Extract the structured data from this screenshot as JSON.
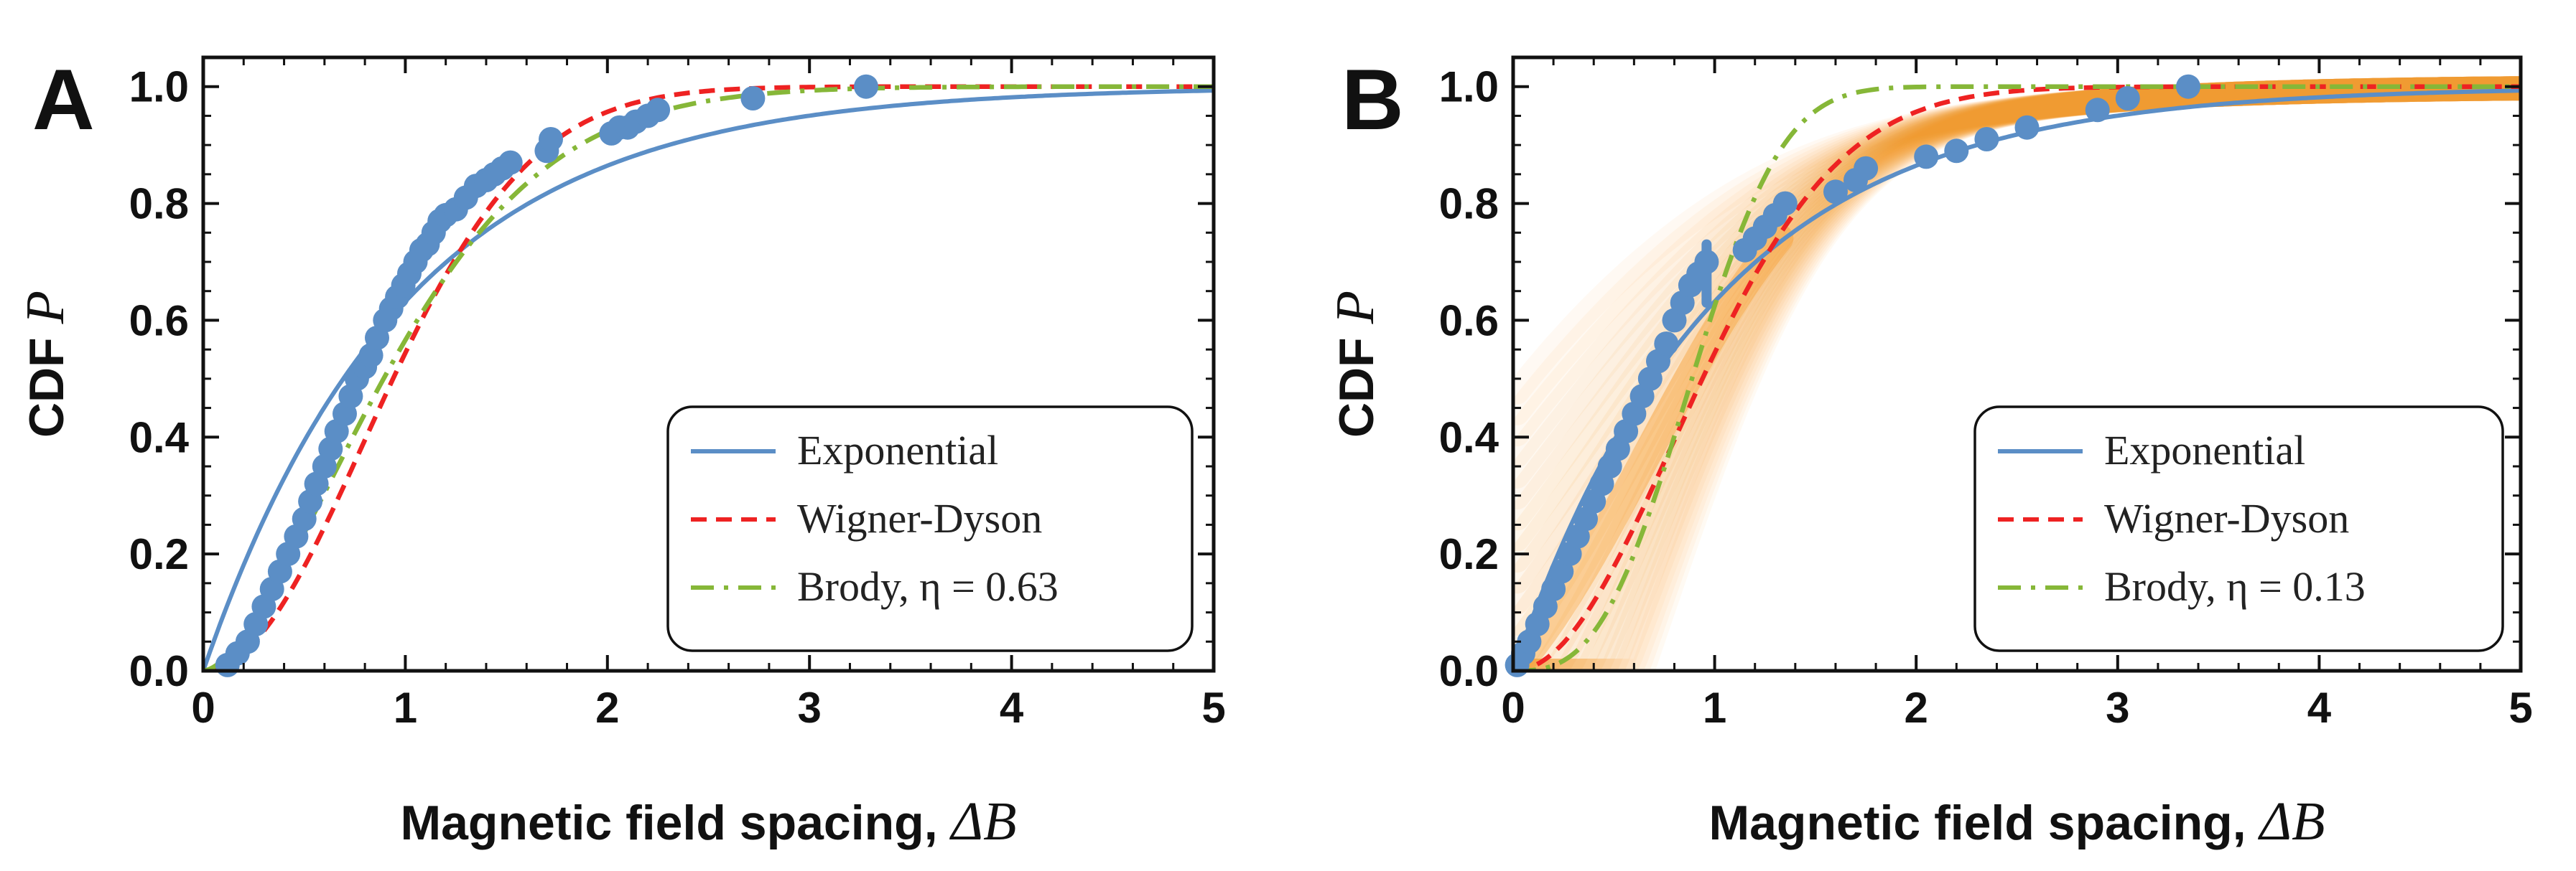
{
  "chart_data": [
    {
      "type": "line",
      "panel": "A",
      "xlabel": "Magnetic field spacing, ",
      "xlabel_var": "ΔB",
      "ylabel": "CDF ",
      "ylabel_var": "P",
      "xlim": [
        0,
        5
      ],
      "ylim": [
        0,
        1.05
      ],
      "xticks": [
        0,
        1,
        2,
        3,
        4,
        5
      ],
      "xtick_labels": [
        "0",
        "1",
        "2",
        "3",
        "4",
        "5"
      ],
      "yticks": [
        0,
        0.2,
        0.4,
        0.6,
        0.8,
        1.0
      ],
      "ytick_labels": [
        "0.0",
        "0.2",
        "0.4",
        "0.6",
        "0.8",
        "1.0"
      ],
      "series": [
        {
          "name": "Exponential",
          "kind": "exponential",
          "color": "#5b8ec6",
          "dash": "solid"
        },
        {
          "name": "Wigner-Dyson",
          "kind": "wigner",
          "color": "#ee2222",
          "dash": "dashed"
        },
        {
          "name": "Brody, η = 0.63",
          "kind": "brody",
          "eta": 0.63,
          "color": "#86b738",
          "dash": "dashdot"
        }
      ],
      "legend": {
        "position": "bottom-right"
      },
      "scatter": {
        "name": "data",
        "color": "#5b8ec6",
        "x": [
          0.12,
          0.17,
          0.22,
          0.26,
          0.3,
          0.34,
          0.38,
          0.42,
          0.46,
          0.5,
          0.53,
          0.56,
          0.6,
          0.63,
          0.66,
          0.7,
          0.73,
          0.76,
          0.8,
          0.83,
          0.86,
          0.9,
          0.93,
          0.96,
          0.99,
          1.02,
          1.05,
          1.08,
          1.11,
          1.14,
          1.17,
          1.2,
          1.25,
          1.3,
          1.35,
          1.4,
          1.44,
          1.48,
          1.52,
          1.7,
          1.72,
          2.02,
          2.06,
          2.1,
          2.14,
          2.2,
          2.25,
          2.72,
          3.28
        ],
        "y": [
          0.01,
          0.03,
          0.05,
          0.08,
          0.11,
          0.14,
          0.17,
          0.2,
          0.23,
          0.26,
          0.29,
          0.32,
          0.35,
          0.38,
          0.41,
          0.44,
          0.47,
          0.5,
          0.52,
          0.54,
          0.57,
          0.6,
          0.62,
          0.64,
          0.66,
          0.68,
          0.7,
          0.72,
          0.73,
          0.75,
          0.77,
          0.78,
          0.79,
          0.81,
          0.83,
          0.84,
          0.85,
          0.86,
          0.87,
          0.89,
          0.91,
          0.92,
          0.93,
          0.93,
          0.94,
          0.95,
          0.96,
          0.98,
          1.0
        ]
      }
    },
    {
      "type": "line",
      "panel": "B",
      "xlabel": "Magnetic field spacing, ",
      "xlabel_var": "ΔB",
      "ylabel": "CDF ",
      "ylabel_var": "P",
      "xlim": [
        0,
        5
      ],
      "ylim": [
        0,
        1.05
      ],
      "xticks": [
        0,
        1,
        2,
        3,
        4,
        5
      ],
      "xtick_labels": [
        "0",
        "1",
        "2",
        "3",
        "4",
        "5"
      ],
      "yticks": [
        0,
        0.2,
        0.4,
        0.6,
        0.8,
        1.0
      ],
      "ytick_labels": [
        "0.0",
        "0.2",
        "0.4",
        "0.6",
        "0.8",
        "1.0"
      ],
      "series": [
        {
          "name": "Exponential",
          "kind": "exponential",
          "color": "#5b8ec6",
          "dash": "solid"
        },
        {
          "name": "Wigner-Dyson",
          "kind": "wigner",
          "color": "#ee2222",
          "dash": "dashed"
        },
        {
          "name": "Brody, η = 0.13",
          "kind": "brody_curve",
          "color": "#86b738",
          "dash": "dashdot"
        }
      ],
      "legend": {
        "position": "bottom-right"
      },
      "band": {
        "name": "simulation spread",
        "color": "#f7941d"
      },
      "scatter": {
        "name": "data",
        "color": "#5b8ec6",
        "x": [
          0.02,
          0.05,
          0.08,
          0.12,
          0.16,
          0.2,
          0.24,
          0.28,
          0.32,
          0.36,
          0.4,
          0.44,
          0.48,
          0.52,
          0.56,
          0.6,
          0.64,
          0.68,
          0.72,
          0.76,
          0.8,
          0.84,
          0.88,
          0.92,
          0.96,
          1.15,
          1.2,
          1.25,
          1.3,
          1.35,
          1.6,
          1.7,
          1.75,
          2.05,
          2.2,
          2.35,
          2.55,
          2.9,
          3.05,
          3.35
        ],
        "y": [
          0.01,
          0.03,
          0.05,
          0.08,
          0.11,
          0.14,
          0.17,
          0.2,
          0.23,
          0.26,
          0.29,
          0.32,
          0.35,
          0.38,
          0.41,
          0.44,
          0.47,
          0.5,
          0.53,
          0.56,
          0.6,
          0.63,
          0.66,
          0.68,
          0.7,
          0.72,
          0.74,
          0.76,
          0.78,
          0.8,
          0.82,
          0.84,
          0.86,
          0.88,
          0.89,
          0.91,
          0.93,
          0.96,
          0.98,
          1.0
        ],
        "error_bar_index": 24
      }
    }
  ]
}
